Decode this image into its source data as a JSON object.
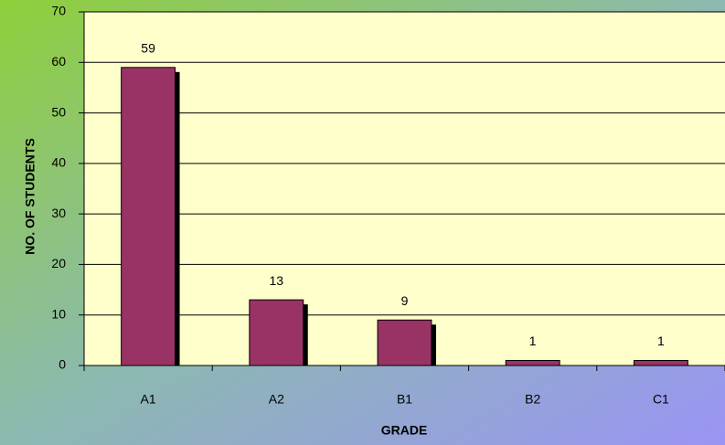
{
  "chart_data": {
    "type": "bar",
    "x_label": "GRADE",
    "y_label": "NO. OF STUDENTS",
    "categories": [
      "A1",
      "A2",
      "B1",
      "B2",
      "C1"
    ],
    "values": [
      59,
      13,
      9,
      1,
      1
    ],
    "color": "#993366",
    "ylim": [
      0,
      70
    ],
    "yticks": [
      0,
      10,
      20,
      30,
      40,
      50,
      60,
      70
    ],
    "grid": true,
    "data_labels": true
  }
}
